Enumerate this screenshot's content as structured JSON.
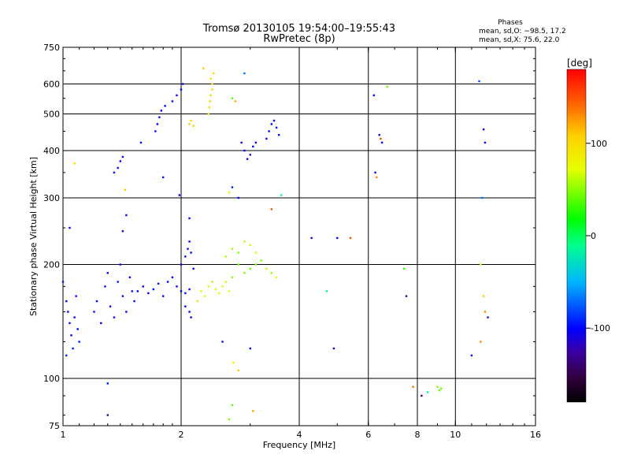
{
  "chart_data": {
    "type": "scatter",
    "title": "Tromsø 20130105 19:54:00–19:55:43",
    "subtitle": "RwPretec (8p)",
    "xlabel": "Frequency [MHz]",
    "ylabel": "Stationary phase Virtual Height [km]",
    "x_scale": "log2",
    "y_scale": "log",
    "xlim": [
      1,
      16
    ],
    "ylim": [
      75,
      750
    ],
    "x_ticks": [
      1,
      2,
      4,
      6,
      8,
      10,
      16
    ],
    "y_ticks": [
      75,
      100,
      200,
      300,
      400,
      500,
      600,
      750
    ],
    "x_gridlines": [
      2,
      4,
      6,
      8,
      10
    ],
    "y_gridlines": [
      100,
      200,
      300,
      400,
      500,
      600
    ],
    "grid": true,
    "stats": {
      "heading": "Phases",
      "line1": "mean, sd,O: −98.5, 17.2",
      "line2": "mean, sd,X:  75.6, 22.0"
    },
    "colorbar": {
      "label": "[deg]",
      "range": [
        -180,
        180
      ],
      "ticks": [
        100,
        0,
        -100
      ]
    },
    "points": [
      [
        1.0,
        180,
        -95
      ],
      [
        1.02,
        160,
        -100
      ],
      [
        1.03,
        150,
        -98
      ],
      [
        1.04,
        140,
        -102
      ],
      [
        1.05,
        130,
        -100
      ],
      [
        1.06,
        120,
        -97
      ],
      [
        1.07,
        145,
        -103
      ],
      [
        1.08,
        165,
        -99
      ],
      [
        1.09,
        135,
        -101
      ],
      [
        1.1,
        125,
        -96
      ],
      [
        1.02,
        115,
        -90
      ],
      [
        1.04,
        250,
        -100
      ],
      [
        1.07,
        370,
        95
      ],
      [
        1.2,
        150,
        -100
      ],
      [
        1.22,
        160,
        -98
      ],
      [
        1.25,
        140,
        -101
      ],
      [
        1.28,
        175,
        -97
      ],
      [
        1.3,
        190,
        -99
      ],
      [
        1.32,
        155,
        -102
      ],
      [
        1.35,
        145,
        -100
      ],
      [
        1.38,
        180,
        -96
      ],
      [
        1.4,
        200,
        -100
      ],
      [
        1.42,
        165,
        -98
      ],
      [
        1.45,
        150,
        -101
      ],
      [
        1.48,
        185,
        -99
      ],
      [
        1.5,
        170,
        -97
      ],
      [
        1.52,
        160,
        -100
      ],
      [
        1.3,
        97,
        -95
      ],
      [
        1.3,
        80,
        -130
      ],
      [
        1.35,
        350,
        -100
      ],
      [
        1.38,
        360,
        -98
      ],
      [
        1.4,
        375,
        -100
      ],
      [
        1.42,
        385,
        -99
      ],
      [
        1.44,
        315,
        110
      ],
      [
        1.45,
        270,
        -100
      ],
      [
        1.42,
        245,
        -110
      ],
      [
        1.55,
        170,
        -100
      ],
      [
        1.6,
        175,
        -99
      ],
      [
        1.65,
        168,
        -101
      ],
      [
        1.7,
        172,
        -98
      ],
      [
        1.75,
        178,
        -100
      ],
      [
        1.8,
        165,
        -97
      ],
      [
        1.85,
        180,
        -100
      ],
      [
        1.9,
        185,
        -99
      ],
      [
        1.95,
        175,
        -101
      ],
      [
        2.0,
        170,
        -100
      ],
      [
        2.05,
        168,
        -98
      ],
      [
        2.1,
        172,
        -100
      ],
      [
        1.58,
        420,
        -100
      ],
      [
        1.72,
        450,
        -99
      ],
      [
        1.74,
        470,
        -100
      ],
      [
        1.76,
        490,
        -98
      ],
      [
        1.78,
        510,
        -100
      ],
      [
        1.82,
        525,
        -99
      ],
      [
        1.9,
        540,
        -100
      ],
      [
        1.95,
        560,
        -98
      ],
      [
        2.0,
        580,
        -100
      ],
      [
        2.02,
        600,
        -101
      ],
      [
        1.8,
        340,
        -100
      ],
      [
        1.98,
        305,
        -100
      ],
      [
        2.0,
        200,
        -100
      ],
      [
        2.05,
        210,
        -98
      ],
      [
        2.08,
        220,
        -100
      ],
      [
        2.1,
        230,
        -101
      ],
      [
        2.12,
        215,
        -99
      ],
      [
        2.15,
        195,
        -100
      ],
      [
        2.1,
        150,
        -100
      ],
      [
        2.05,
        155,
        -98
      ],
      [
        2.12,
        145,
        -102
      ],
      [
        2.1,
        265,
        -100
      ],
      [
        2.1,
        470,
        110
      ],
      [
        2.12,
        480,
        105
      ],
      [
        2.15,
        465,
        108
      ],
      [
        2.35,
        500,
        95
      ],
      [
        2.36,
        520,
        100
      ],
      [
        2.37,
        540,
        105
      ],
      [
        2.38,
        560,
        98
      ],
      [
        2.4,
        580,
        102
      ],
      [
        2.4,
        600,
        100
      ],
      [
        2.38,
        620,
        95
      ],
      [
        2.42,
        640,
        100
      ],
      [
        2.28,
        660,
        110
      ],
      [
        2.2,
        160,
        90
      ],
      [
        2.25,
        170,
        80
      ],
      [
        2.3,
        165,
        70
      ],
      [
        2.35,
        175,
        85
      ],
      [
        2.4,
        180,
        60
      ],
      [
        2.45,
        172,
        75
      ],
      [
        2.5,
        168,
        80
      ],
      [
        2.55,
        175,
        70
      ],
      [
        2.6,
        180,
        65
      ],
      [
        2.65,
        170,
        75
      ],
      [
        2.7,
        185,
        50
      ],
      [
        2.8,
        200,
        45
      ],
      [
        2.9,
        190,
        50
      ],
      [
        3.0,
        195,
        40
      ],
      [
        3.1,
        200,
        45
      ],
      [
        3.2,
        205,
        50
      ],
      [
        3.3,
        195,
        60
      ],
      [
        3.4,
        190,
        55
      ],
      [
        3.5,
        185,
        70
      ],
      [
        2.6,
        210,
        60
      ],
      [
        2.7,
        220,
        55
      ],
      [
        2.8,
        215,
        50
      ],
      [
        2.9,
        230,
        60
      ],
      [
        3.0,
        225,
        65
      ],
      [
        3.1,
        215,
        70
      ],
      [
        2.7,
        550,
        40
      ],
      [
        2.75,
        540,
        120
      ],
      [
        2.9,
        640,
        -70
      ],
      [
        2.85,
        420,
        -110
      ],
      [
        2.9,
        400,
        -100
      ],
      [
        2.95,
        380,
        -108
      ],
      [
        3.0,
        390,
        -112
      ],
      [
        3.05,
        410,
        -100
      ],
      [
        3.1,
        420,
        -105
      ],
      [
        2.8,
        300,
        -100
      ],
      [
        2.7,
        320,
        -95
      ],
      [
        2.65,
        310,
        85
      ],
      [
        3.3,
        430,
        -100
      ],
      [
        3.35,
        450,
        -98
      ],
      [
        3.4,
        470,
        -100
      ],
      [
        3.45,
        480,
        -101
      ],
      [
        3.5,
        460,
        -99
      ],
      [
        3.55,
        440,
        -100
      ],
      [
        2.72,
        110,
        80
      ],
      [
        2.8,
        105,
        110
      ],
      [
        2.7,
        85,
        40
      ],
      [
        2.65,
        78,
        50
      ],
      [
        2.55,
        125,
        -100
      ],
      [
        3.0,
        120,
        -100
      ],
      [
        3.05,
        82,
        120
      ],
      [
        3.4,
        280,
        150
      ],
      [
        3.6,
        305,
        -15
      ],
      [
        4.3,
        235,
        -110
      ],
      [
        4.7,
        170,
        -20
      ],
      [
        4.9,
        120,
        -110
      ],
      [
        5.0,
        235,
        -100
      ],
      [
        5.4,
        235,
        150
      ],
      [
        6.2,
        560,
        -100
      ],
      [
        6.25,
        350,
        -100
      ],
      [
        6.3,
        340,
        130
      ],
      [
        6.4,
        440,
        -120
      ],
      [
        6.45,
        430,
        150
      ],
      [
        6.5,
        420,
        -100
      ],
      [
        6.7,
        590,
        40
      ],
      [
        7.4,
        195,
        30
      ],
      [
        7.5,
        165,
        -130
      ],
      [
        7.8,
        95,
        140
      ],
      [
        8.2,
        90,
        -150
      ],
      [
        8.5,
        92,
        -15
      ],
      [
        9.0,
        95,
        50
      ],
      [
        9.1,
        93,
        40
      ],
      [
        9.2,
        94,
        45
      ],
      [
        11.0,
        115,
        -100
      ],
      [
        11.5,
        610,
        -80
      ],
      [
        11.8,
        455,
        -110
      ],
      [
        11.9,
        420,
        -100
      ],
      [
        11.7,
        300,
        -70
      ],
      [
        11.6,
        200,
        70
      ],
      [
        11.8,
        165,
        110
      ],
      [
        11.9,
        150,
        130
      ],
      [
        12.1,
        145,
        -120
      ],
      [
        11.6,
        125,
        130
      ]
    ]
  }
}
